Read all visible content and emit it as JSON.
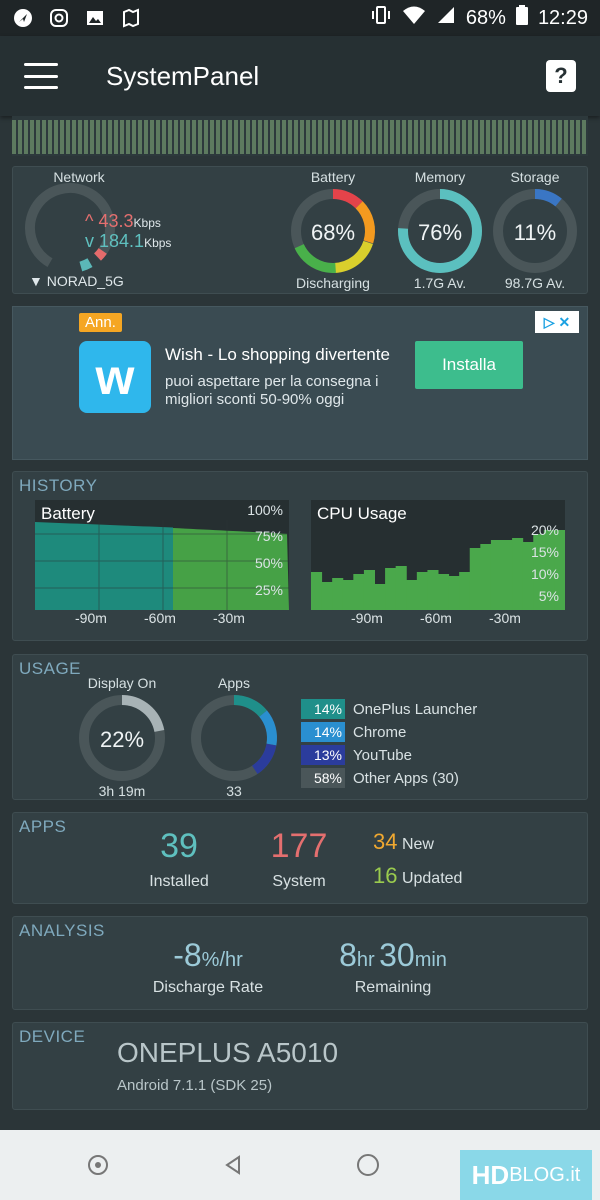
{
  "status_bar": {
    "battery_percent": "68%",
    "time": "12:29"
  },
  "app": {
    "title": "SystemPanel"
  },
  "overview": {
    "network": {
      "label": "Network",
      "up_value": "43.3",
      "up_unit": "Kbps",
      "down_value": "184.1",
      "down_unit": "Kbps",
      "ssid": "NORAD_5G"
    },
    "battery": {
      "label": "Battery",
      "value": "68%",
      "status": "Discharging",
      "level": 0.68
    },
    "memory": {
      "label": "Memory",
      "value": "76%",
      "sub": "1.7G Av.",
      "level": 0.76
    },
    "storage": {
      "label": "Storage",
      "value": "11%",
      "sub": "98.7G Av.",
      "level": 0.11
    }
  },
  "ad": {
    "tag": "Ann.",
    "title": "Wish - Lo shopping divertente",
    "desc": "puoi aspettare per la consegna i migliori sconti 50-90% oggi",
    "cta": "Installa",
    "icon_letter": "w"
  },
  "history": {
    "title": "HISTORY",
    "battery_chart": {
      "title": "Battery",
      "y_ticks": [
        "100%",
        "75%",
        "50%",
        "25%"
      ],
      "x_ticks": [
        "-90m",
        "-60m",
        "-30m"
      ]
    },
    "cpu_chart": {
      "title": "CPU Usage",
      "y_ticks": [
        "20%",
        "15%",
        "10%",
        "5%"
      ],
      "x_ticks": [
        "-90m",
        "-60m",
        "-30m"
      ]
    }
  },
  "usage": {
    "title": "USAGE",
    "display_on": {
      "label": "Display On",
      "value": "22%",
      "sub": "3h 19m",
      "level": 0.22
    },
    "apps": {
      "label": "Apps",
      "sub": "33"
    },
    "legend": [
      {
        "pct": "14%",
        "name": "OnePlus Launcher",
        "color": "#1f8f8a"
      },
      {
        "pct": "14%",
        "name": "Chrome",
        "color": "#2a8fd0"
      },
      {
        "pct": "13%",
        "name": "YouTube",
        "color": "#2b3c9c"
      },
      {
        "pct": "58%",
        "name": "Other Apps (30)",
        "color": "#4a5659"
      }
    ]
  },
  "apps": {
    "title": "APPS",
    "installed_value": "39",
    "installed_label": "Installed",
    "system_value": "177",
    "system_label": "System",
    "new_value": "34",
    "new_label": "New",
    "updated_value": "16",
    "updated_label": "Updated"
  },
  "analysis": {
    "title": "ANALYSIS",
    "rate_value": "-8",
    "rate_unit": "%/hr",
    "rate_label": "Discharge Rate",
    "remain_hr": "8",
    "remain_hr_unit": "hr",
    "remain_min": "30",
    "remain_min_unit": "min",
    "remain_label": "Remaining"
  },
  "device": {
    "title": "DEVICE",
    "model": "ONEPLUS A5010",
    "os": "Android 7.1.1 (SDK 25)"
  },
  "watermark": {
    "main": "HD",
    "sub": "BLOG.it"
  }
}
